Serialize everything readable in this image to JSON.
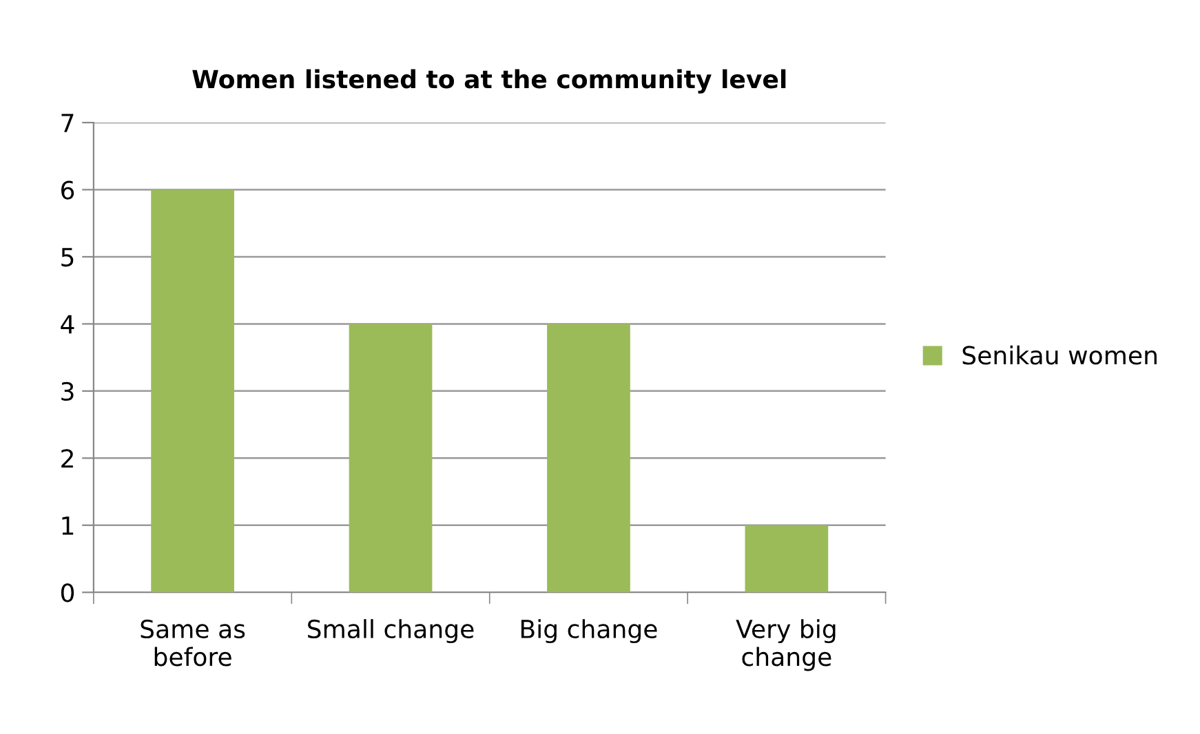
{
  "chart_data": {
    "type": "bar",
    "title": "Women listened to at the community level",
    "categories": [
      "Same as\nbefore",
      "Small change",
      "Big change",
      "Very big\nchange"
    ],
    "series": [
      {
        "name": "Senikau women",
        "color": "#9bbb59",
        "values": [
          6,
          4,
          4,
          1
        ]
      }
    ],
    "ylim": [
      0,
      7
    ],
    "yticks": [
      0,
      1,
      2,
      3,
      4,
      5,
      6,
      7
    ],
    "grid": "y",
    "legend": "right"
  }
}
